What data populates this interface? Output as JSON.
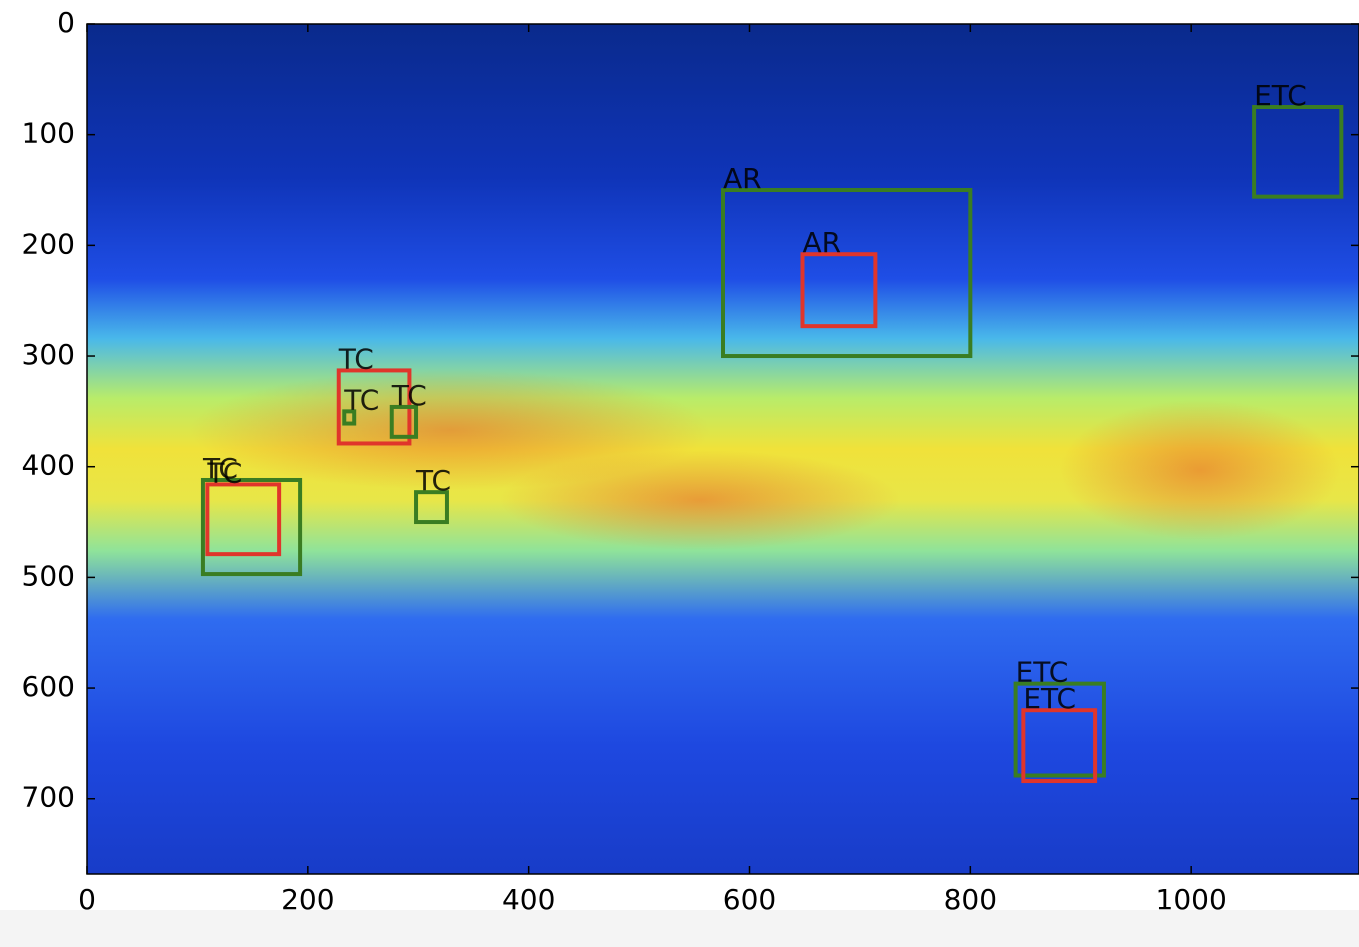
{
  "chart_data": {
    "type": "image",
    "xlim": [
      0,
      1152
    ],
    "ylim": [
      768,
      0
    ],
    "xticks": [
      0,
      200,
      400,
      600,
      800,
      1000
    ],
    "yticks": [
      0,
      100,
      200,
      300,
      400,
      500,
      600,
      700
    ],
    "boxes": [
      {
        "label": "AR",
        "color": "#3a7d22",
        "x0": 576,
        "y0": 150,
        "x1": 800,
        "y1": 300
      },
      {
        "label": "AR",
        "color": "#e0352b",
        "x0": 648,
        "y0": 208,
        "x1": 714,
        "y1": 273
      },
      {
        "label": "ETC",
        "color": "#3a7d22",
        "x0": 1057,
        "y0": 75,
        "x1": 1136,
        "y1": 156
      },
      {
        "label": "ETC",
        "color": "#3a7d22",
        "x0": 841,
        "y0": 596,
        "x1": 921,
        "y1": 679
      },
      {
        "label": "ETC",
        "color": "#e0352b",
        "x0": 848,
        "y0": 620,
        "x1": 913,
        "y1": 684
      },
      {
        "label": "TC",
        "color": "#e0352b",
        "x0": 228,
        "y0": 313,
        "x1": 292,
        "y1": 379
      },
      {
        "label": "TC",
        "color": "#3a7d22",
        "x0": 233,
        "y0": 350,
        "x1": 242,
        "y1": 361
      },
      {
        "label": "TC",
        "color": "#3a7d22",
        "x0": 276,
        "y0": 346,
        "x1": 298,
        "y1": 373
      },
      {
        "label": "TC",
        "color": "#3a7d22",
        "x0": 105,
        "y0": 412,
        "x1": 193,
        "y1": 497
      },
      {
        "label": "TC",
        "color": "#e0352b",
        "x0": 109,
        "y0": 416,
        "x1": 174,
        "y1": 479
      },
      {
        "label": "TC",
        "color": "#3a7d22",
        "x0": 298,
        "y0": 423,
        "x1": 326,
        "y1": 450
      }
    ]
  }
}
